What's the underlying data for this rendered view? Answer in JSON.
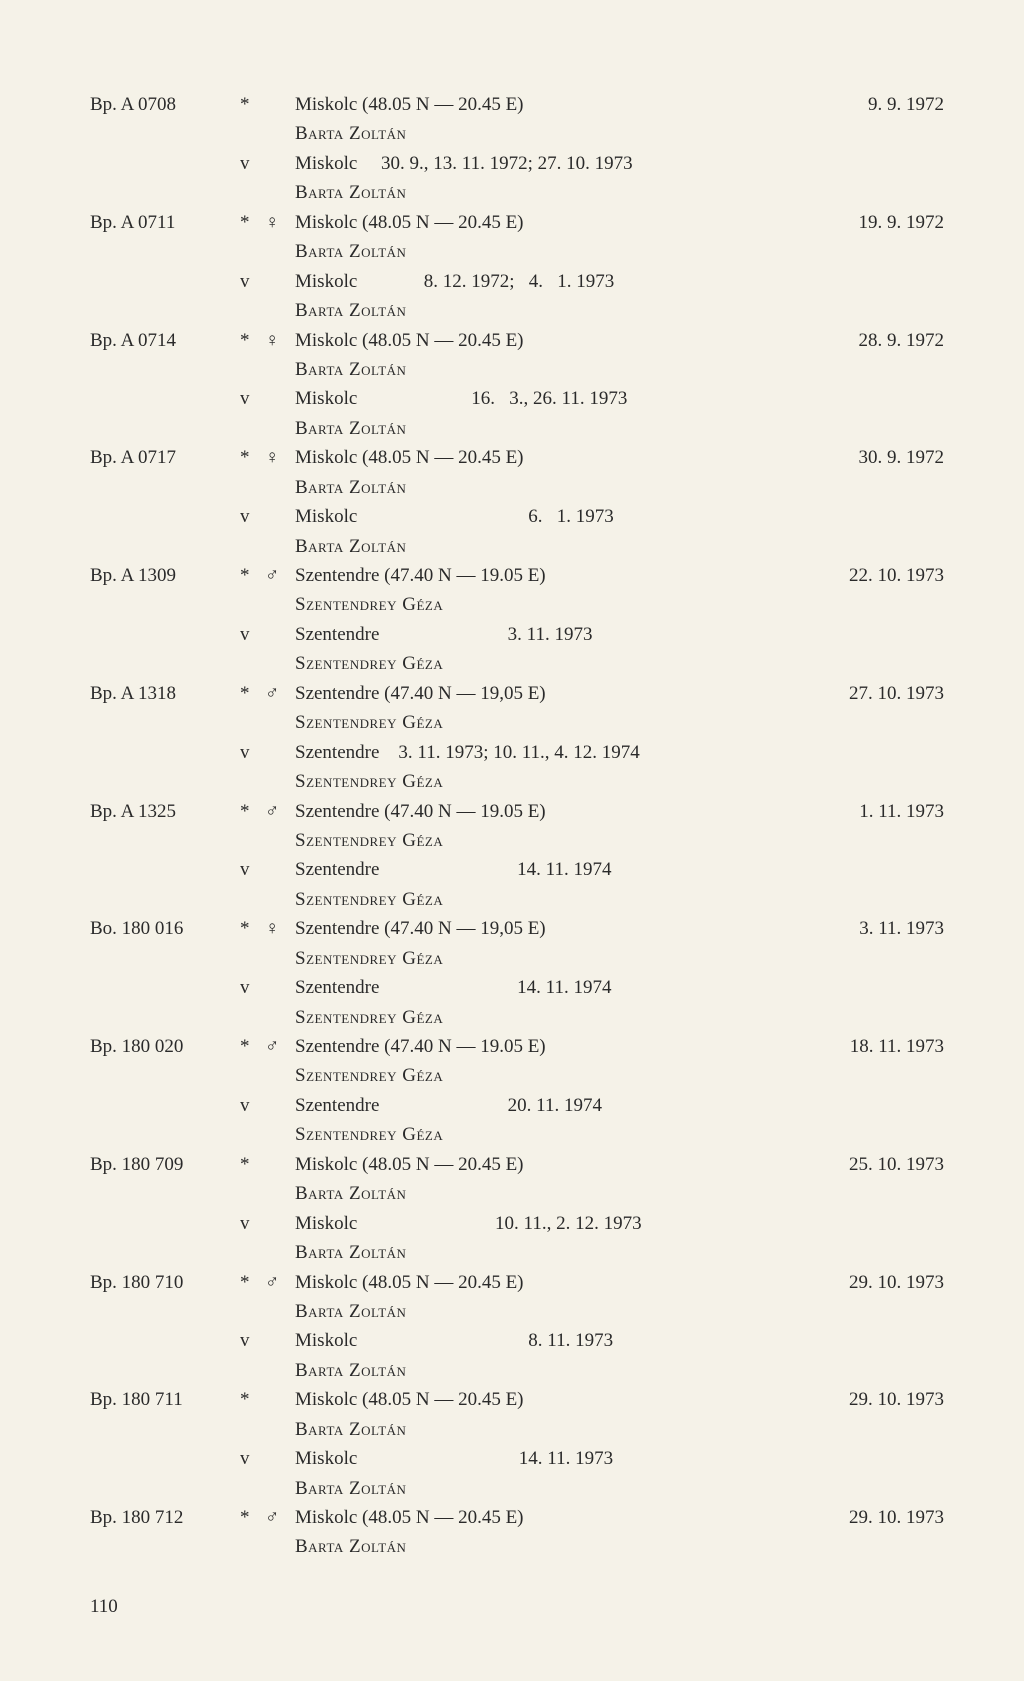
{
  "entries": [
    {
      "id": "Bp. A 0708",
      "rows": [
        {
          "mark": "*",
          "sex": "",
          "loc": "Miskolc (48.05 N — 20.45 E)",
          "date": "9.  9. 1972",
          "author": "Barta Zoltán"
        },
        {
          "mark": "v",
          "sex": "",
          "loc": "Miskolc     30. 9., 13. 11. 1972; 27. 10. 1973",
          "date": "",
          "author": "Barta Zoltán"
        }
      ]
    },
    {
      "id": "Bp. A 0711",
      "rows": [
        {
          "mark": "*",
          "sex": "♀",
          "loc": "Miskolc (48.05 N — 20.45 E)",
          "date": "19.  9. 1972",
          "author": "Barta Zoltán"
        },
        {
          "mark": "v",
          "sex": "",
          "loc": "Miskolc              8. 12. 1972;   4.   1. 1973",
          "date": "",
          "author": "Barta Zoltán"
        }
      ]
    },
    {
      "id": "Bp. A 0714",
      "rows": [
        {
          "mark": "*",
          "sex": "♀",
          "loc": "Miskolc (48.05 N — 20.45 E)",
          "date": "28.  9. 1972",
          "author": "Barta Zoltán"
        },
        {
          "mark": "v",
          "sex": "",
          "loc": "Miskolc                        16.   3., 26. 11. 1973",
          "date": "",
          "author": "Barta Zoltán"
        }
      ]
    },
    {
      "id": "Bp. A 0717",
      "rows": [
        {
          "mark": "*",
          "sex": "♀",
          "loc": "Miskolc (48.05 N — 20.45 E)",
          "date": "30. 9.  1972",
          "author": "Barta Zoltán"
        },
        {
          "mark": "v",
          "sex": "",
          "loc": "Miskolc                                    6.   1. 1973",
          "date": "",
          "author": "Barta Zoltán"
        }
      ]
    },
    {
      "id": "Bp. A 1309",
      "rows": [
        {
          "mark": "*",
          "sex": "♂",
          "loc": "Szentendre (47.40 N — 19.05 E)",
          "date": "22. 10. 1973",
          "author": "Szentendrey Géza"
        },
        {
          "mark": "v",
          "sex": "",
          "loc": "Szentendre                           3. 11. 1973",
          "date": "",
          "author": "Szentendrey Géza"
        }
      ]
    },
    {
      "id": "Bp. A 1318",
      "rows": [
        {
          "mark": "*",
          "sex": "♂",
          "loc": "Szentendre (47.40 N — 19,05 E)",
          "date": "27. 10. 1973",
          "author": "Szentendrey Géza"
        },
        {
          "mark": "v",
          "sex": "",
          "loc": "Szentendre    3. 11. 1973; 10. 11., 4. 12. 1974",
          "date": "",
          "author": "Szentendrey Géza"
        }
      ]
    },
    {
      "id": "Bp. A 1325",
      "rows": [
        {
          "mark": "*",
          "sex": "♂",
          "loc": "Szentendre (47.40 N — 19.05 E)",
          "date": "1. 11. 1973",
          "author": "Szentendrey Géza"
        },
        {
          "mark": "v",
          "sex": "",
          "loc": "Szentendre                             14. 11. 1974",
          "date": "",
          "author": "Szentendrey Géza"
        }
      ]
    },
    {
      "id": "Bo. 180 016",
      "rows": [
        {
          "mark": "*",
          "sex": "♀",
          "loc": "Szentendre (47.40 N — 19,05 E)",
          "date": "3. 11. 1973",
          "author": "Szentendrey Géza"
        },
        {
          "mark": "v",
          "sex": "",
          "loc": "Szentendre                             14. 11. 1974",
          "date": "",
          "author": "Szentendrey Géza"
        }
      ]
    },
    {
      "id": "Bp. 180 020",
      "rows": [
        {
          "mark": "*",
          "sex": "♂",
          "loc": "Szentendre (47.40 N — 19.05 E)",
          "date": "18. 11. 1973",
          "author": "Szentendrey Géza"
        },
        {
          "mark": "v",
          "sex": "",
          "loc": "Szentendre                           20. 11. 1974",
          "date": "",
          "author": "Szentendrey Géza"
        }
      ]
    },
    {
      "id": "Bp. 180 709",
      "rows": [
        {
          "mark": "*",
          "sex": "",
          "loc": "Miskolc (48.05 N — 20.45 E)",
          "date": "25. 10. 1973",
          "author": "Barta Zoltán"
        },
        {
          "mark": "v",
          "sex": "",
          "loc": "Miskolc                             10. 11., 2. 12. 1973",
          "date": "",
          "author": "Barta Zoltán"
        }
      ]
    },
    {
      "id": "Bp. 180 710",
      "rows": [
        {
          "mark": "*",
          "sex": "♂",
          "loc": "Miskolc (48.05 N — 20.45 E)",
          "date": "29. 10. 1973",
          "author": "Barta Zoltán"
        },
        {
          "mark": "v",
          "sex": "",
          "loc": "Miskolc                                    8. 11. 1973",
          "date": "",
          "author": "Barta Zoltán"
        }
      ]
    },
    {
      "id": "Bp. 180 711",
      "rows": [
        {
          "mark": "*",
          "sex": "",
          "loc": "Miskolc (48.05 N — 20.45 E)",
          "date": "29. 10. 1973",
          "author": "Barta Zoltán"
        },
        {
          "mark": "v",
          "sex": "",
          "loc": "Miskolc                                  14. 11. 1973",
          "date": "",
          "author": "Barta Zoltán"
        }
      ]
    },
    {
      "id": "Bp. 180 712",
      "rows": [
        {
          "mark": "*",
          "sex": "♂",
          "loc": "Miskolc (48.05 N — 20.45 E)",
          "date": "29. 10. 1973",
          "author": "Barta Zoltán"
        }
      ]
    }
  ],
  "pageNumber": "110"
}
